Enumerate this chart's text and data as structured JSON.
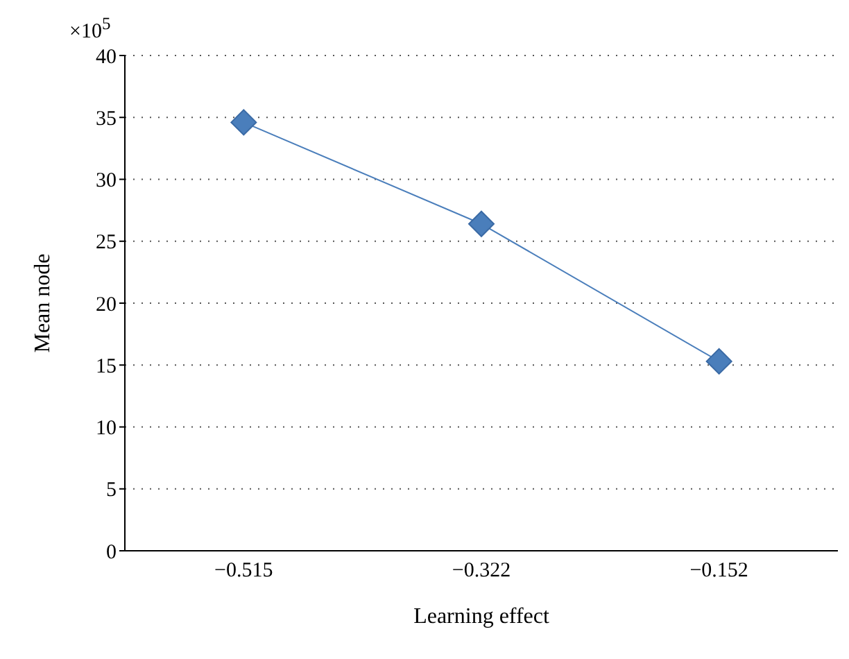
{
  "chart_data": {
    "type": "line",
    "xlabel": "Learning effect",
    "ylabel": "Mean node",
    "annotations": [
      "×10$^{5}$"
    ],
    "categories": [
      "−0.515",
      "−0.322",
      "−0.152"
    ],
    "series": [
      {
        "color": "#4a7ebb",
        "values": [
          34.6,
          26.4,
          15.3
        ]
      }
    ],
    "ylim": [
      0,
      40
    ],
    "yticks": [
      0,
      5,
      10,
      15,
      20,
      25,
      30,
      35,
      40
    ],
    "grid": "y",
    "marker": "diamond",
    "line_style": "solid"
  }
}
